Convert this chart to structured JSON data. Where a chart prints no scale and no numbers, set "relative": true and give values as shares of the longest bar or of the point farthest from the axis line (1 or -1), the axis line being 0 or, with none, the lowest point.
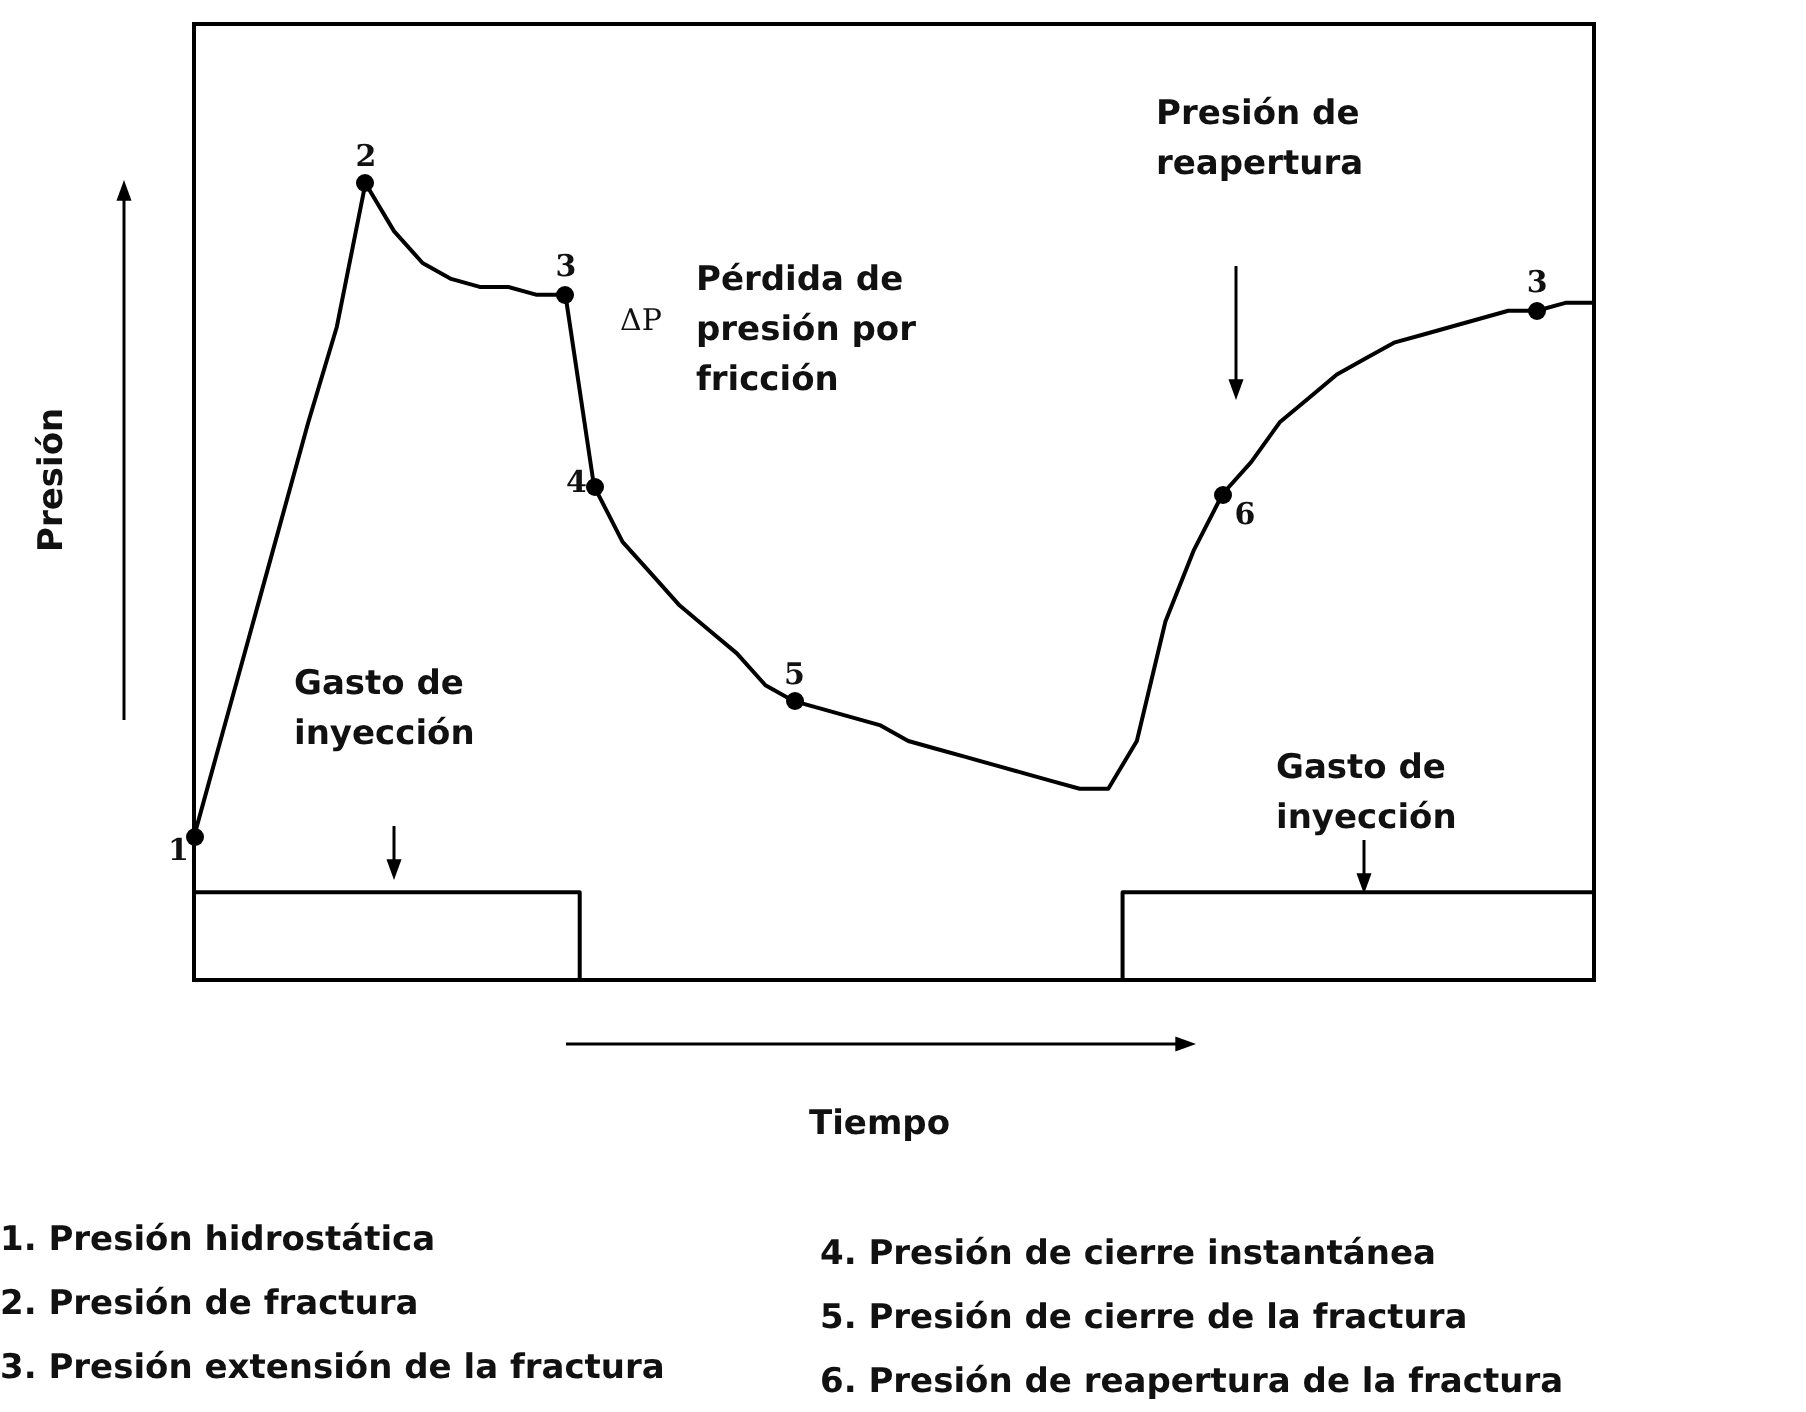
{
  "chart_data": {
    "type": "line",
    "relative": true,
    "xlabel": "Tiempo",
    "ylabel": "Presión",
    "categories": [
      null,
      null,
      null,
      null,
      null,
      null,
      null,
      null,
      null,
      null,
      null,
      null,
      null,
      null,
      null,
      null,
      null,
      null,
      null,
      null,
      null,
      null,
      null,
      null,
      null,
      null,
      null,
      null,
      null,
      null,
      null,
      null,
      null,
      null,
      null,
      null,
      null,
      null,
      null,
      null,
      null,
      null,
      null,
      null,
      null,
      null,
      null,
      null,
      null,
      null
    ],
    "series": [
      {
        "color": "#000000",
        "values": [
          0.18,
          0.31,
          0.44,
          0.57,
          0.7,
          0.82,
          1,
          0.94,
          0.9,
          0.88,
          0.87,
          0.87,
          0.86,
          0.86,
          0.62,
          0.55,
          0.51,
          0.47,
          0.44,
          0.41,
          0.37,
          0.35,
          0.34,
          0.33,
          0.32,
          0.3,
          0.29,
          0.28,
          0.27,
          0.26,
          0.25,
          0.24,
          0.24,
          0.3,
          0.45,
          0.54,
          0.61,
          0.65,
          0.7,
          0.73,
          0.76,
          0.78,
          0.8,
          0.81,
          0.82,
          0.83,
          0.84,
          0.84,
          0.85,
          0.85
        ]
      },
      {
        "type": "step",
        "color": "#000000",
        "values": [
          0.11,
          0.11,
          0.11,
          0.11,
          0.11,
          0.11,
          0.11,
          0.11,
          0.11,
          0.11,
          0.11,
          0.11,
          0.11,
          0.11,
          0,
          0,
          0,
          0,
          0,
          0,
          0,
          0,
          0,
          0,
          0,
          0,
          0,
          0,
          0,
          0,
          0,
          0,
          0,
          0.11,
          0.11,
          0.11,
          0.11,
          0.11,
          0.11,
          0.11,
          0.11,
          0.11,
          0.11,
          0.11,
          0.11,
          0.11,
          0.11,
          0.11,
          0.11,
          0.11
        ]
      }
    ],
    "annotations": [
      "1",
      "2",
      "3",
      "4",
      "5",
      "6",
      "3",
      "ΔP",
      "Pérdida de presión por fricción",
      "Presión de reapertura",
      "Gasto de inyección",
      "Gasto de inyección",
      "1. Presión hidrostática",
      "2. Presión de fractura",
      "3. Presión extensión de la fractura",
      "4. Presión de cierre instantánea",
      "5. Presión de cierre de la fractura",
      "6. Presión de reapertura de la fractura"
    ]
  }
}
